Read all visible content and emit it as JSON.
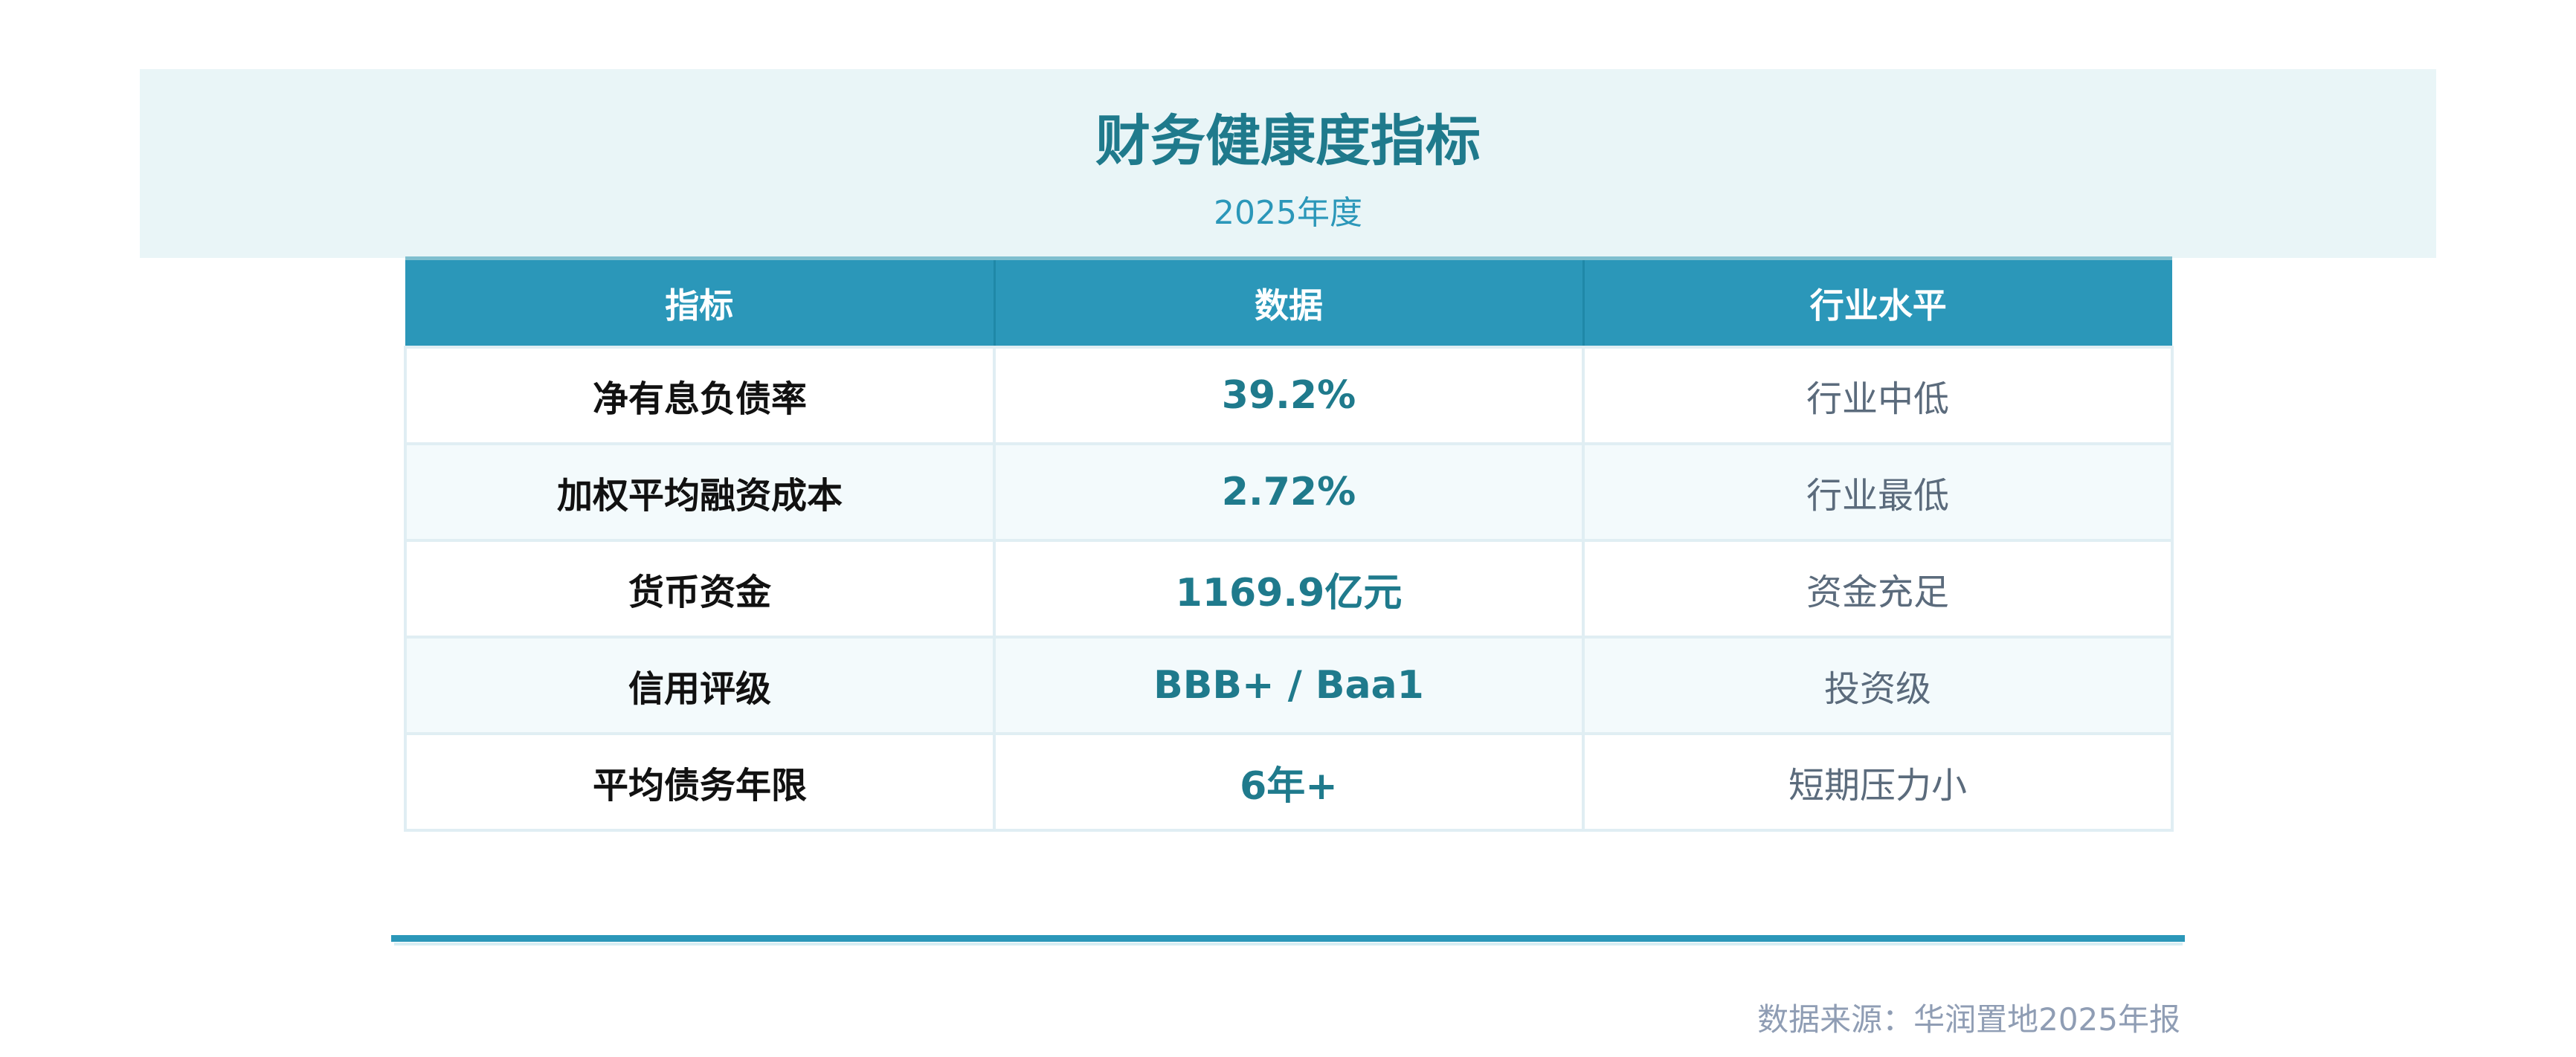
{
  "header": {
    "title": "财务健康度指标",
    "subtitle": "2025年度"
  },
  "table": {
    "columns": [
      "指标",
      "数据",
      "行业水平"
    ],
    "rows": [
      {
        "metric": "净有息负债率",
        "value": "39.2%",
        "level": "行业中低"
      },
      {
        "metric": "加权平均融资成本",
        "value": "2.72%",
        "level": "行业最低"
      },
      {
        "metric": "货币资金",
        "value": "1169.9亿元",
        "level": "资金充足"
      },
      {
        "metric": "信用评级",
        "value": "BBB+ / Baa1",
        "level": "投资级"
      },
      {
        "metric": "平均债务年限",
        "value": "6年+",
        "level": "短期压力小"
      }
    ]
  },
  "footer": {
    "source": "数据来源：华润置地2025年报"
  },
  "colors": {
    "accent": "#2b97b9",
    "title": "#1f7a8c",
    "band": "#e9f5f7",
    "muted": "#8f9db4"
  }
}
